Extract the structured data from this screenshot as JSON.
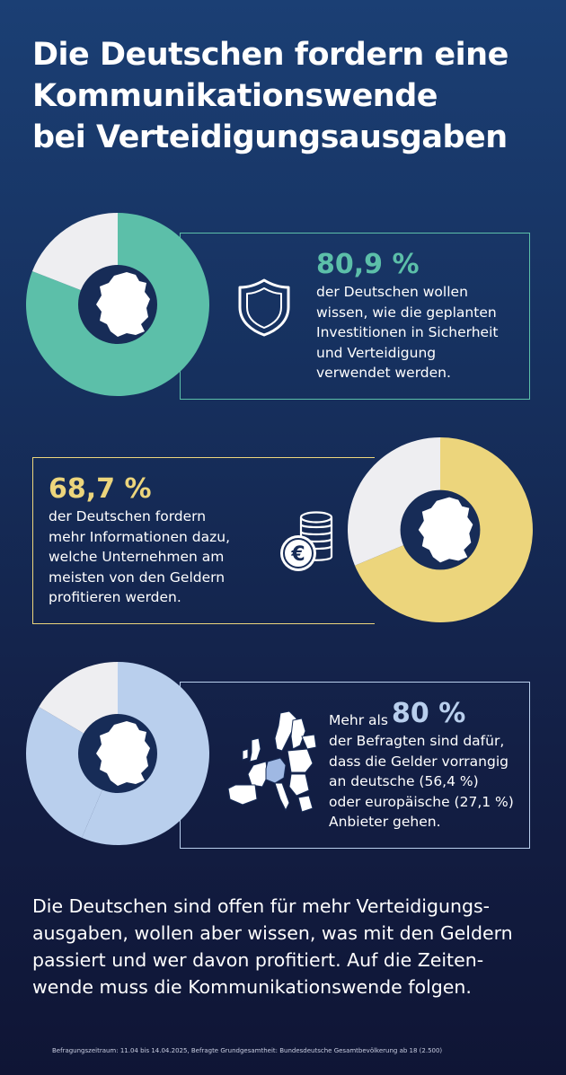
{
  "title_lines": [
    "Die Deutschen fordern eine",
    "Kommunikationswende",
    "bei Verteidigungsausgaben"
  ],
  "colors": {
    "teal": "#5cbfa9",
    "yellow": "#ecd57c",
    "lightblue": "#b9cfed",
    "remainder": "#eeeef1",
    "center": "#172c57",
    "eu_highlight": "#9fb8e3"
  },
  "icons": [
    "shield-icon",
    "euro-coins-icon",
    "europe-map-icon",
    "germany-map-icon"
  ],
  "chart_data": [
    {
      "type": "pie",
      "style": "donut",
      "values": [
        80.9,
        19.1
      ],
      "stat_label": "80,9 %",
      "description_lines": [
        "der Deutschen wollen",
        "wissen, wie die geplanten",
        "Investitionen in Sicherheit",
        "und Verteidigung",
        "verwendet werden."
      ]
    },
    {
      "type": "pie",
      "style": "donut",
      "values": [
        68.7,
        31.3
      ],
      "stat_label": "68,7 %",
      "description_lines": [
        "der Deutschen fordern",
        "mehr Informationen dazu,",
        "welche Unternehmen am",
        "meisten von den Geldern",
        "profitieren werden."
      ]
    },
    {
      "type": "pie",
      "style": "donut",
      "values": [
        56.4,
        27.1,
        16.5
      ],
      "stat_prefix": "Mehr als",
      "stat_label": "80 %",
      "description_lines": [
        "der Befragten sind dafür,",
        "dass die Gelder vorrangig",
        "an deutsche (56,4 %)",
        "oder europäische (27,1 %)",
        "Anbieter gehen."
      ]
    }
  ],
  "conclusion_lines": [
    "Die Deutschen sind offen für mehr Verteidigungs-",
    "ausgaben, wollen aber wissen, was mit den Geldern",
    "passiert und wer davon profitiert. Auf die Zeiten-",
    "wende muss die Kommunikationswende folgen."
  ],
  "footnote": "Befragungszeitraum: 11.04 bis 14.04.2025, Befragte Grundgesamtheit: Bundesdeutsche Gesamtbevölkerung ab 18 (2.500)"
}
